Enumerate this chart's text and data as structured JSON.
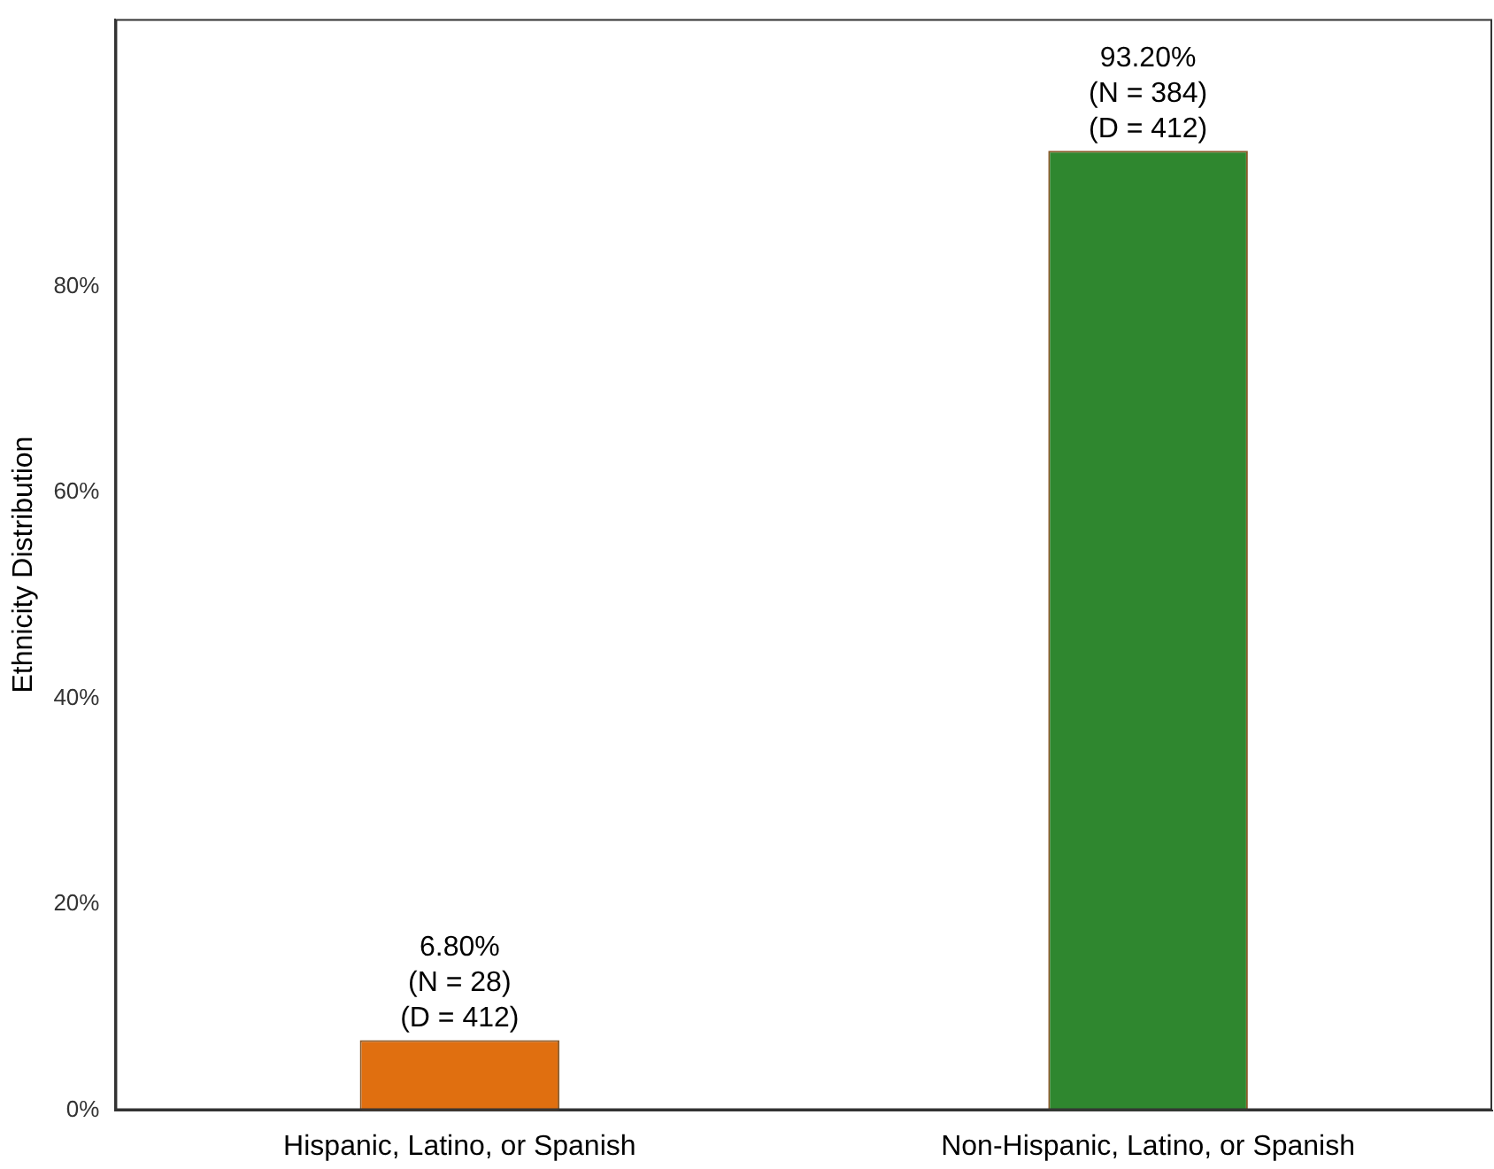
{
  "chart_data": {
    "type": "bar",
    "ylabel": "Ethnicity Distribution",
    "categories": [
      "Hispanic, Latino, or Spanish",
      "Non-Hispanic, Latino, or Spanish"
    ],
    "values": [
      6.8,
      93.2
    ],
    "colors": [
      "#e06f10",
      "#2f872f"
    ],
    "value_labels": [
      "6.80%\n(N = 28)\n(D = 412)",
      "93.20%\n(N = 384)\n(D = 412)"
    ],
    "ylim": [
      0,
      106
    ],
    "yticks": [
      {
        "value": 0,
        "label": "0%"
      },
      {
        "value": 20,
        "label": "20%"
      },
      {
        "value": 40,
        "label": "40%"
      },
      {
        "value": 60,
        "label": "60%"
      },
      {
        "value": 80,
        "label": "80%"
      }
    ],
    "grid": false,
    "legend": false
  }
}
